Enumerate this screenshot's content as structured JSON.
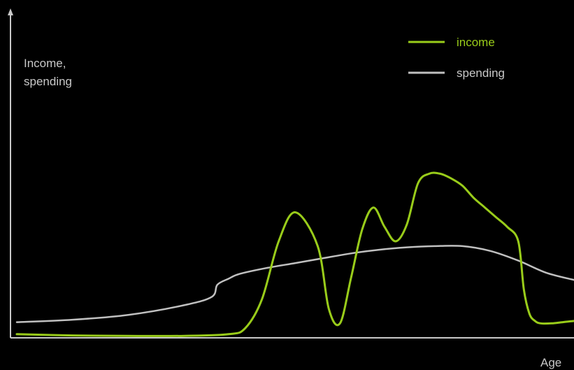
{
  "chart_data": {
    "type": "line",
    "title": "",
    "xlabel": "Age",
    "ylabel_lines": [
      "Income,",
      "spending"
    ],
    "axis_ticks": "none",
    "grid": false,
    "legend_position": "top-right",
    "x_range": [
      0,
      100
    ],
    "y_range": [
      0,
      100
    ],
    "series": [
      {
        "name": "income",
        "color": "#99cc1a",
        "x": [
          0,
          10,
          20,
          30,
          38,
          41,
          44,
          47,
          50,
          54,
          56,
          58,
          60,
          62,
          64,
          66,
          68,
          70,
          72,
          74,
          76,
          78,
          80,
          82,
          84,
          86,
          88,
          90,
          91,
          92,
          93,
          94,
          96,
          98,
          100
        ],
        "y": [
          1.5,
          1,
          0.8,
          0.8,
          1.5,
          4,
          16,
          40,
          52,
          38,
          12,
          6,
          25,
          45,
          54,
          46,
          40,
          47,
          64,
          68,
          68,
          66,
          63,
          58,
          54,
          50,
          46,
          40,
          20,
          10,
          7,
          6,
          6,
          6.5,
          7
        ]
      },
      {
        "name": "spending",
        "color": "#c0c0c0",
        "x": [
          0,
          10,
          20,
          30,
          35,
          36,
          38,
          40,
          45,
          50,
          55,
          60,
          65,
          70,
          75,
          80,
          85,
          90,
          95,
          100
        ],
        "y": [
          6.5,
          7.5,
          9.5,
          13.5,
          17,
          22,
          24.5,
          26.5,
          29,
          31,
          33,
          35,
          36.5,
          37.5,
          38,
          38,
          36,
          32,
          27,
          24
        ]
      }
    ]
  }
}
